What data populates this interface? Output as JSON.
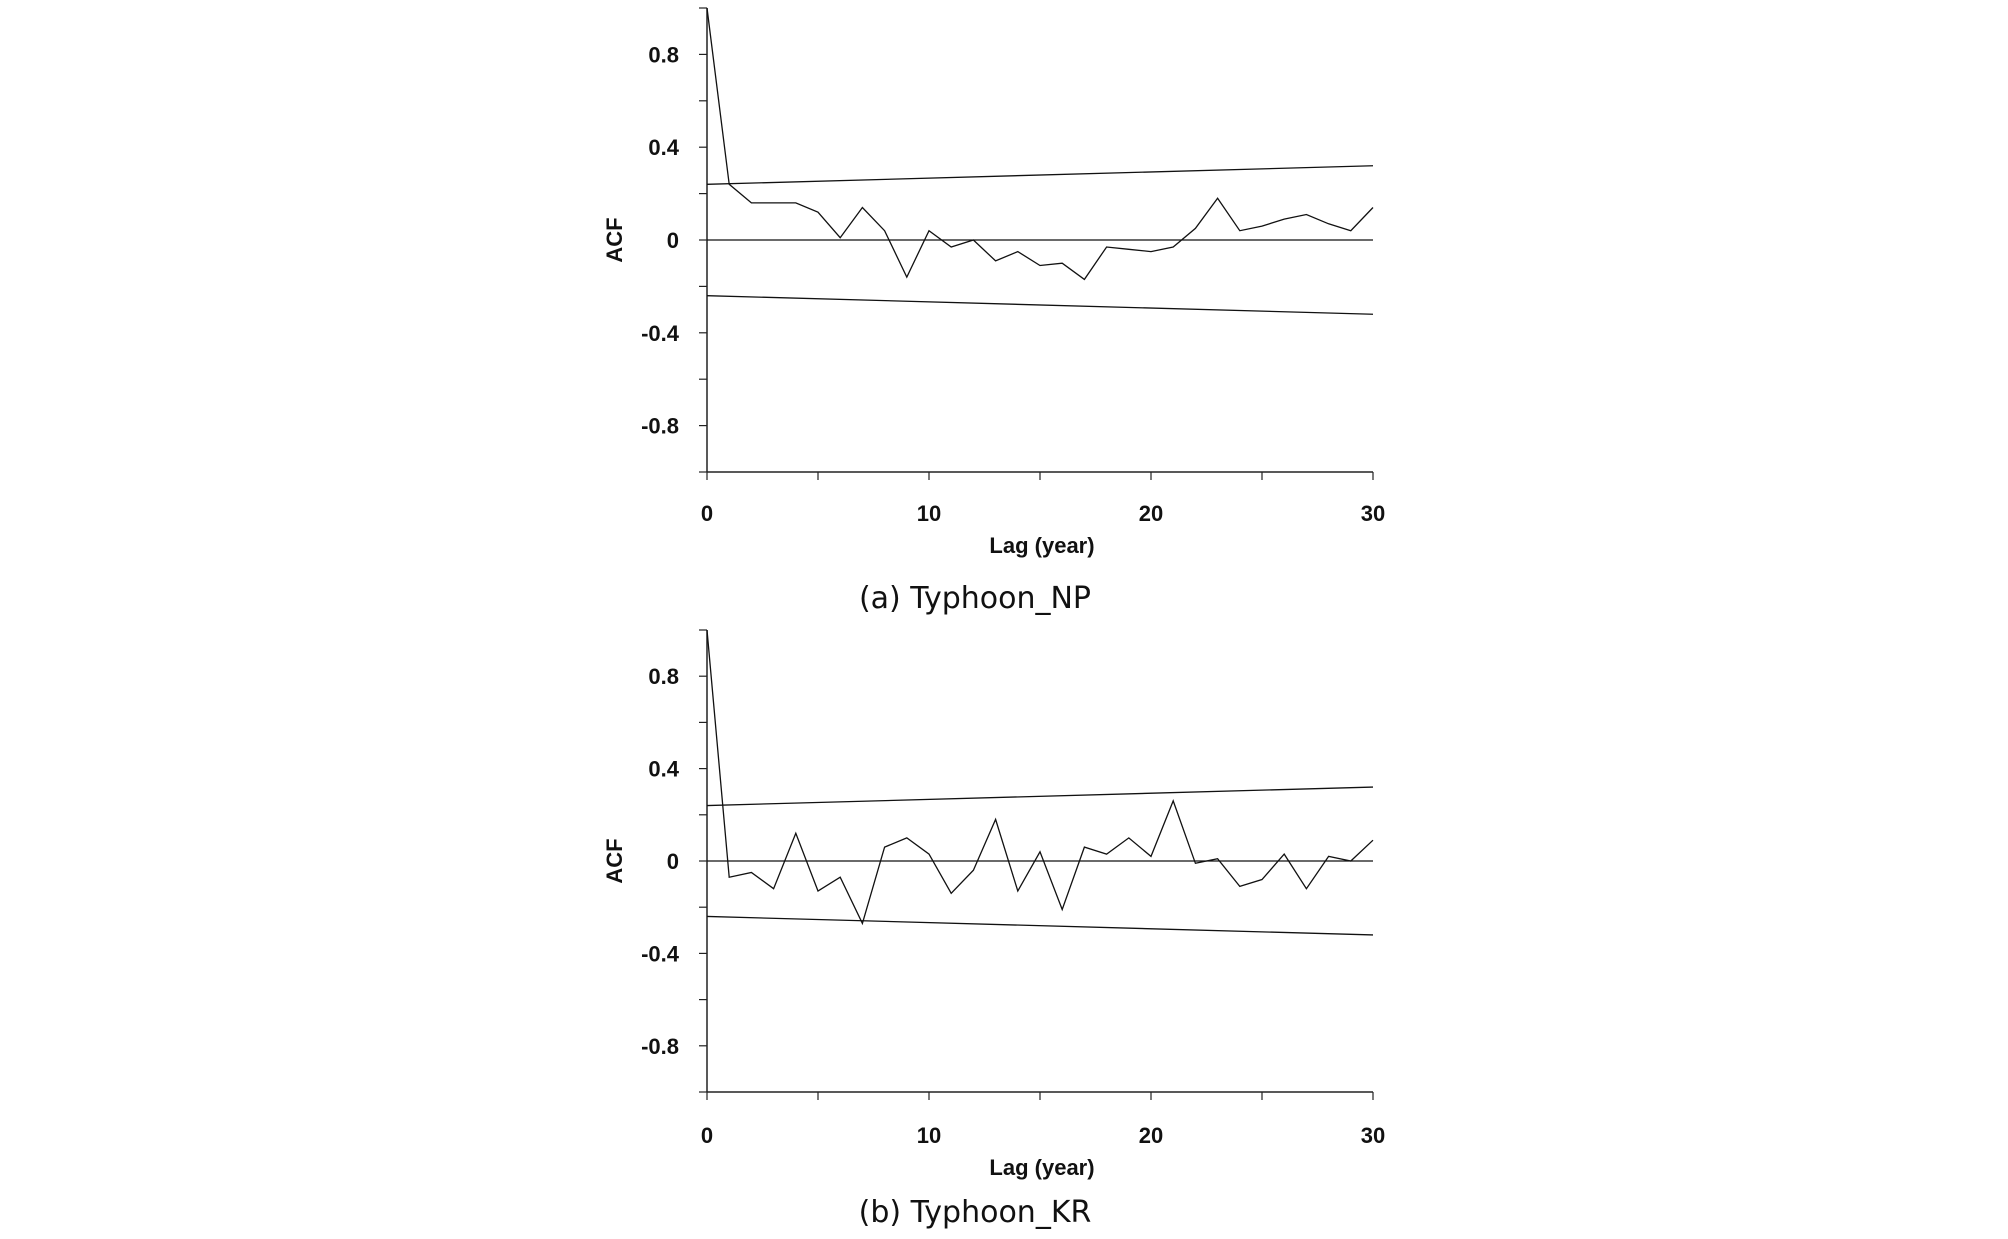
{
  "chart_data": [
    {
      "type": "line",
      "caption": "(a) Typhoon_NP",
      "xlabel": "Lag (year)",
      "ylabel": "ACF",
      "xlim": [
        0,
        30
      ],
      "ylim": [
        -1,
        1
      ],
      "x_ticks": [
        0,
        10,
        20,
        30
      ],
      "y_ticks": [
        0.8,
        0.4,
        0,
        -0.4,
        -0.8
      ],
      "y_tick_labels": [
        "0.8",
        "0.4",
        "0",
        "-0.4",
        "-0.8"
      ],
      "x_tick_labels": [
        "0",
        "10",
        "20",
        "30"
      ],
      "series": [
        {
          "x": [
            0,
            1,
            2,
            3,
            4,
            5,
            6,
            7,
            8,
            9,
            10,
            11,
            12,
            13,
            14,
            15,
            16,
            17,
            18,
            19,
            20,
            21,
            22,
            23,
            24,
            25,
            26,
            27,
            28,
            29,
            30
          ],
          "values": [
            1.0,
            0.24,
            0.16,
            0.16,
            0.16,
            0.12,
            0.01,
            0.14,
            0.04,
            -0.16,
            0.04,
            -0.03,
            0.0,
            -0.09,
            -0.05,
            -0.11,
            -0.1,
            -0.17,
            -0.03,
            -0.04,
            -0.05,
            -0.03,
            0.05,
            0.18,
            0.04,
            0.06,
            0.09,
            0.11,
            0.07,
            0.04,
            0.14
          ]
        }
      ],
      "confidence_upper": [
        [
          0,
          0.24
        ],
        [
          30,
          0.32
        ]
      ],
      "confidence_lower": [
        [
          0,
          -0.24
        ],
        [
          30,
          -0.32
        ]
      ]
    },
    {
      "type": "line",
      "caption": "(b) Typhoon_KR",
      "xlabel": "Lag (year)",
      "ylabel": "ACF",
      "xlim": [
        0,
        30
      ],
      "ylim": [
        -1,
        1
      ],
      "x_ticks": [
        0,
        10,
        20,
        30
      ],
      "y_ticks": [
        0.8,
        0.4,
        0,
        -0.4,
        -0.8
      ],
      "y_tick_labels": [
        "0.8",
        "0.4",
        "0",
        "-0.4",
        "-0.8"
      ],
      "x_tick_labels": [
        "0",
        "10",
        "20",
        "30"
      ],
      "series": [
        {
          "x": [
            0,
            1,
            2,
            3,
            4,
            5,
            6,
            7,
            8,
            9,
            10,
            11,
            12,
            13,
            14,
            15,
            16,
            17,
            18,
            19,
            20,
            21,
            22,
            23,
            24,
            25,
            26,
            27,
            28,
            29,
            30
          ],
          "values": [
            1.0,
            -0.07,
            -0.05,
            -0.12,
            0.12,
            -0.13,
            -0.07,
            -0.27,
            0.06,
            0.1,
            0.03,
            -0.14,
            -0.04,
            0.18,
            -0.13,
            0.04,
            -0.21,
            0.06,
            0.03,
            0.1,
            0.02,
            0.26,
            -0.01,
            0.01,
            -0.11,
            -0.08,
            0.03,
            -0.12,
            0.02,
            0.0,
            0.09
          ]
        }
      ],
      "confidence_upper": [
        [
          0,
          0.24
        ],
        [
          30,
          0.32
        ]
      ],
      "confidence_lower": [
        [
          0,
          -0.24
        ],
        [
          30,
          -0.32
        ]
      ]
    }
  ]
}
